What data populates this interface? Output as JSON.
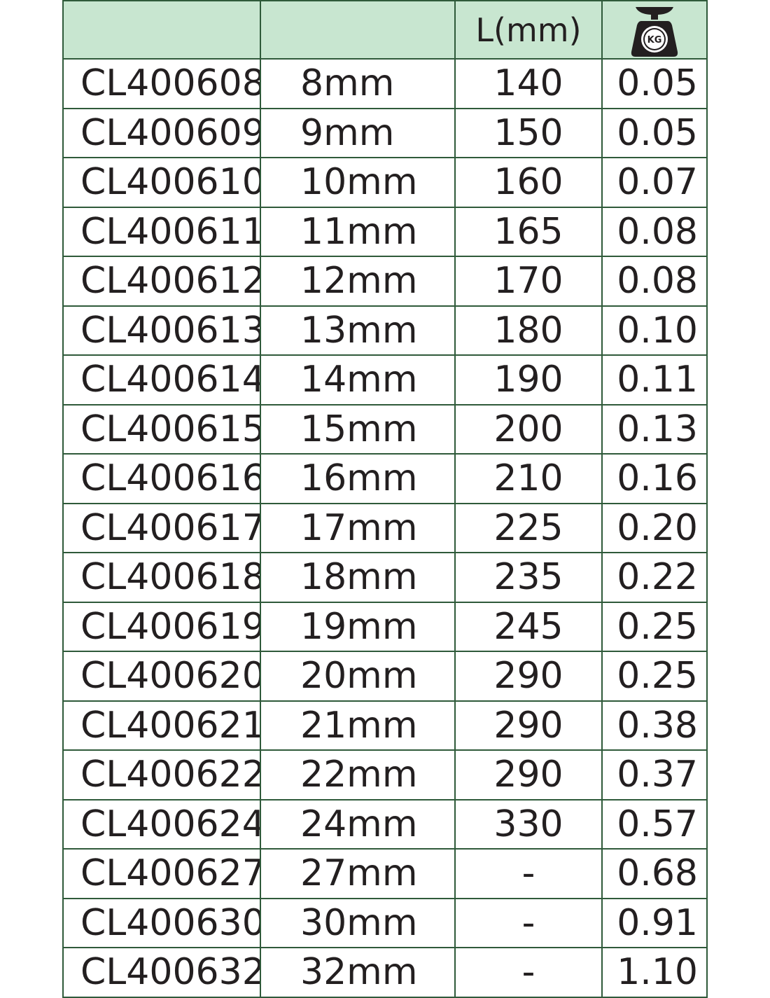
{
  "header": {
    "col1": "",
    "col2": "",
    "length": "L(mm)",
    "weight_icon": "weight-scale-kg-icon",
    "weight_icon_label": "KG"
  },
  "colors": {
    "header_bg": "#c8e6d0",
    "border": "#2f5a3a",
    "text": "#231f20"
  },
  "rows": [
    {
      "code": "CL400608",
      "size": "8mm",
      "length": "140",
      "weight": "0.05"
    },
    {
      "code": "CL400609",
      "size": "9mm",
      "length": "150",
      "weight": "0.05"
    },
    {
      "code": "CL400610",
      "size": "10mm",
      "length": "160",
      "weight": "0.07"
    },
    {
      "code": "CL400611",
      "size": "11mm",
      "length": "165",
      "weight": "0.08"
    },
    {
      "code": "CL400612",
      "size": "12mm",
      "length": "170",
      "weight": "0.08"
    },
    {
      "code": "CL400613",
      "size": "13mm",
      "length": "180",
      "weight": "0.10"
    },
    {
      "code": "CL400614",
      "size": "14mm",
      "length": "190",
      "weight": "0.11"
    },
    {
      "code": "CL400615",
      "size": "15mm",
      "length": "200",
      "weight": "0.13"
    },
    {
      "code": "CL400616",
      "size": "16mm",
      "length": "210",
      "weight": "0.16"
    },
    {
      "code": "CL400617",
      "size": "17mm",
      "length": "225",
      "weight": "0.20"
    },
    {
      "code": "CL400618",
      "size": "18mm",
      "length": "235",
      "weight": "0.22"
    },
    {
      "code": "CL400619",
      "size": "19mm",
      "length": "245",
      "weight": "0.25"
    },
    {
      "code": "CL400620",
      "size": "20mm",
      "length": "290",
      "weight": "0.25"
    },
    {
      "code": "CL400621",
      "size": "21mm",
      "length": "290",
      "weight": "0.38"
    },
    {
      "code": "CL400622",
      "size": "22mm",
      "length": "290",
      "weight": "0.37"
    },
    {
      "code": "CL400624",
      "size": "24mm",
      "length": "330",
      "weight": "0.57"
    },
    {
      "code": "CL400627",
      "size": "27mm",
      "length": "-",
      "weight": "0.68"
    },
    {
      "code": "CL400630",
      "size": "30mm",
      "length": "-",
      "weight": "0.91"
    },
    {
      "code": "CL400632",
      "size": "32mm",
      "length": "-",
      "weight": "1.10"
    }
  ]
}
